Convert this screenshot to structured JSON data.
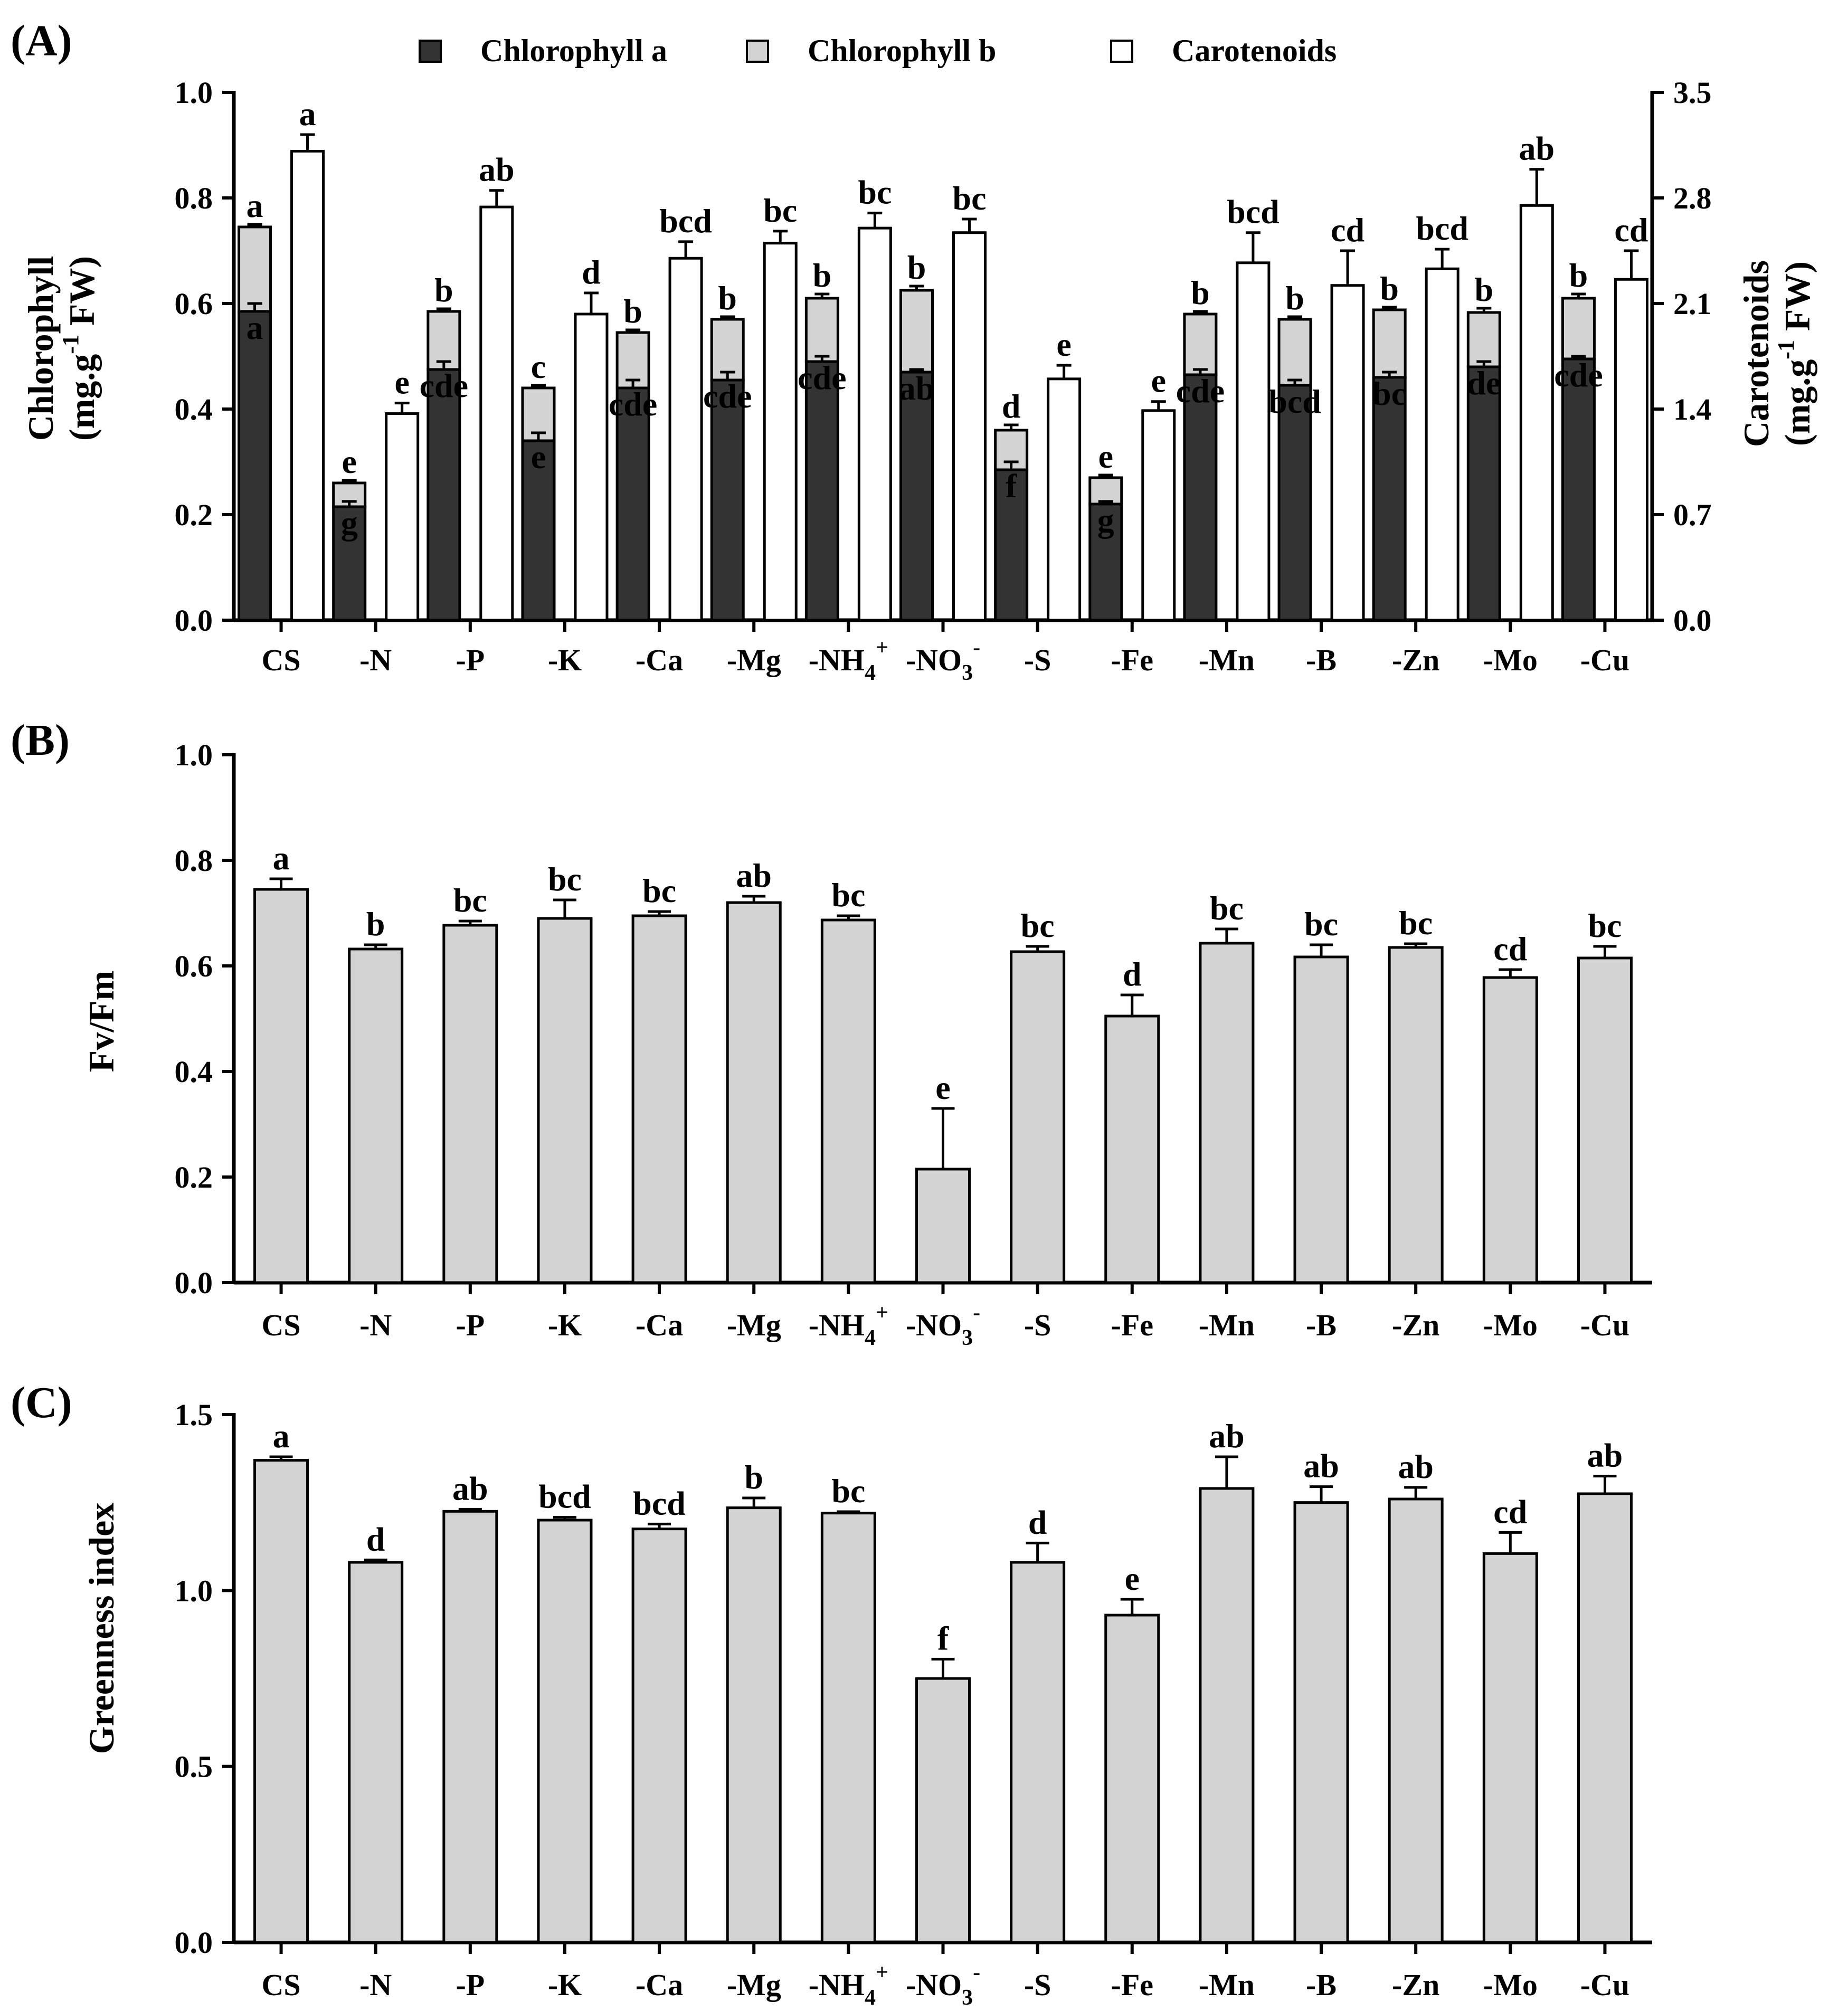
{
  "colors": {
    "chl_a": "#333333",
    "chl_b": "#d3d3d3",
    "carot": "#ffffff",
    "bar": "#d3d3d3",
    "axis": "#000000"
  },
  "legend": {
    "chl_a": "Chlorophyll a",
    "chl_b": "Chlorophyll b",
    "carot": "Carotenoids"
  },
  "panels": {
    "a": "(A)",
    "b": "(B)",
    "c": "(C)"
  },
  "chart_data": [
    {
      "id": "A",
      "type": "bar",
      "title": "(A)",
      "categories": [
        "CS",
        "-N",
        "-P",
        "-K",
        "-Ca",
        "-Mg",
        "-NH4+",
        "-NO3-",
        "-S",
        "-Fe",
        "-Mn",
        "-B",
        "-Zn",
        "-Mo",
        "-Cu"
      ],
      "ylabel": "Chlorophyll (mg.g-1 FW)",
      "ylabel_line1": "Chlorophyll",
      "ylabel_line2_pre": "(mg.g",
      "ylabel_line2_sup": "-1",
      "ylabel_line2_post": " FW)",
      "ylim": [
        0,
        1.0
      ],
      "yticks": [
        "0.0",
        "0.2",
        "0.4",
        "0.6",
        "0.8",
        "1.0"
      ],
      "y2label": "Carotenoids (mg.g-1 FW)",
      "y2label_line1": "Carotenoids",
      "y2label_line2_pre": "(mg.g",
      "y2label_line2_sup": "-1",
      "y2label_line2_post": " FW)",
      "y2lim": [
        0,
        3.5
      ],
      "y2ticks": [
        "0.0",
        "0.7",
        "1.4",
        "2.1",
        "2.8",
        "3.5"
      ],
      "series": [
        {
          "name": "Chlorophyll a",
          "stack": "chl",
          "values": [
            0.585,
            0.215,
            0.475,
            0.34,
            0.44,
            0.455,
            0.49,
            0.47,
            0.285,
            0.22,
            0.465,
            0.445,
            0.46,
            0.48,
            0.495
          ],
          "errors": [
            0.015,
            0.01,
            0.015,
            0.015,
            0.015,
            0.015,
            0.01,
            0.005,
            0.015,
            0.005,
            0.01,
            0.01,
            0.01,
            0.01,
            0.005
          ],
          "sig": [
            "a",
            "g",
            "cde",
            "e",
            "cde",
            "cde",
            "cde",
            "ab",
            "f",
            "g",
            "cde",
            "bcd",
            "bc",
            "de",
            "cde"
          ]
        },
        {
          "name": "Chlorophyll b",
          "stack": "chl",
          "values": [
            0.16,
            0.045,
            0.11,
            0.1,
            0.105,
            0.115,
            0.12,
            0.155,
            0.075,
            0.05,
            0.115,
            0.125,
            0.128,
            0.103,
            0.115
          ],
          "errors": [
            0.005,
            0.005,
            0.005,
            0.005,
            0.005,
            0.005,
            0.008,
            0.008,
            0.01,
            0.005,
            0.005,
            0.005,
            0.005,
            0.008,
            0.008
          ],
          "sig": [
            "a",
            "e",
            "b",
            "c",
            "b",
            "b",
            "b",
            "b",
            "d",
            "e",
            "b",
            "b",
            "b",
            "b",
            "b"
          ]
        },
        {
          "name": "Carotenoids",
          "axis": "right",
          "values": [
            3.11,
            1.37,
            2.74,
            2.03,
            2.4,
            2.5,
            2.6,
            2.57,
            1.6,
            1.39,
            2.37,
            2.22,
            2.33,
            2.75,
            2.26
          ],
          "errors": [
            0.11,
            0.07,
            0.11,
            0.14,
            0.11,
            0.08,
            0.1,
            0.09,
            0.09,
            0.06,
            0.2,
            0.23,
            0.13,
            0.24,
            0.19
          ],
          "sig": [
            "a",
            "e",
            "ab",
            "d",
            "bcd",
            "bc",
            "bc",
            "bc",
            "e",
            "e",
            "bcd",
            "cd",
            "bcd",
            "ab",
            "cd"
          ]
        }
      ]
    },
    {
      "id": "B",
      "type": "bar",
      "title": "(B)",
      "categories": [
        "CS",
        "-N",
        "-P",
        "-K",
        "-Ca",
        "-Mg",
        "-NH4+",
        "-NO3-",
        "-S",
        "-Fe",
        "-Mn",
        "-B",
        "-Zn",
        "-Mo",
        "-Cu"
      ],
      "ylabel": "Fv/Fm",
      "ylim": [
        0,
        1.0
      ],
      "yticks": [
        "0.0",
        "0.2",
        "0.4",
        "0.6",
        "0.8",
        "1.0"
      ],
      "values": [
        0.745,
        0.632,
        0.677,
        0.69,
        0.695,
        0.72,
        0.687,
        0.215,
        0.627,
        0.505,
        0.643,
        0.617,
        0.635,
        0.578,
        0.615
      ],
      "errors": [
        0.02,
        0.008,
        0.008,
        0.035,
        0.008,
        0.012,
        0.008,
        0.115,
        0.01,
        0.04,
        0.027,
        0.023,
        0.007,
        0.015,
        0.022
      ],
      "sig": [
        "a",
        "b",
        "bc",
        "bc",
        "bc",
        "ab",
        "bc",
        "e",
        "bc",
        "d",
        "bc",
        "bc",
        "bc",
        "cd",
        "bc"
      ]
    },
    {
      "id": "C",
      "type": "bar",
      "title": "(C)",
      "categories": [
        "CS",
        "-N",
        "-P",
        "-K",
        "-Ca",
        "-Mg",
        "-NH4+",
        "-NO3-",
        "-S",
        "-Fe",
        "-Mn",
        "-B",
        "-Zn",
        "-Mo",
        "-Cu"
      ],
      "ylabel": "Greenness index",
      "ylim": [
        0,
        1.5
      ],
      "yticks": [
        "0.0",
        "0.5",
        "1.0",
        "1.5"
      ],
      "values": [
        1.37,
        1.08,
        1.225,
        1.2,
        1.175,
        1.235,
        1.22,
        0.75,
        1.08,
        0.93,
        1.29,
        1.25,
        1.26,
        1.105,
        1.275
      ],
      "errors": [
        0.01,
        0.007,
        0.006,
        0.008,
        0.014,
        0.028,
        0.004,
        0.055,
        0.055,
        0.045,
        0.09,
        0.045,
        0.033,
        0.06,
        0.05
      ],
      "sig": [
        "a",
        "d",
        "ab",
        "bcd",
        "bcd",
        "b",
        "bc",
        "f",
        "d",
        "e",
        "ab",
        "ab",
        "ab",
        "cd",
        "ab"
      ]
    }
  ]
}
